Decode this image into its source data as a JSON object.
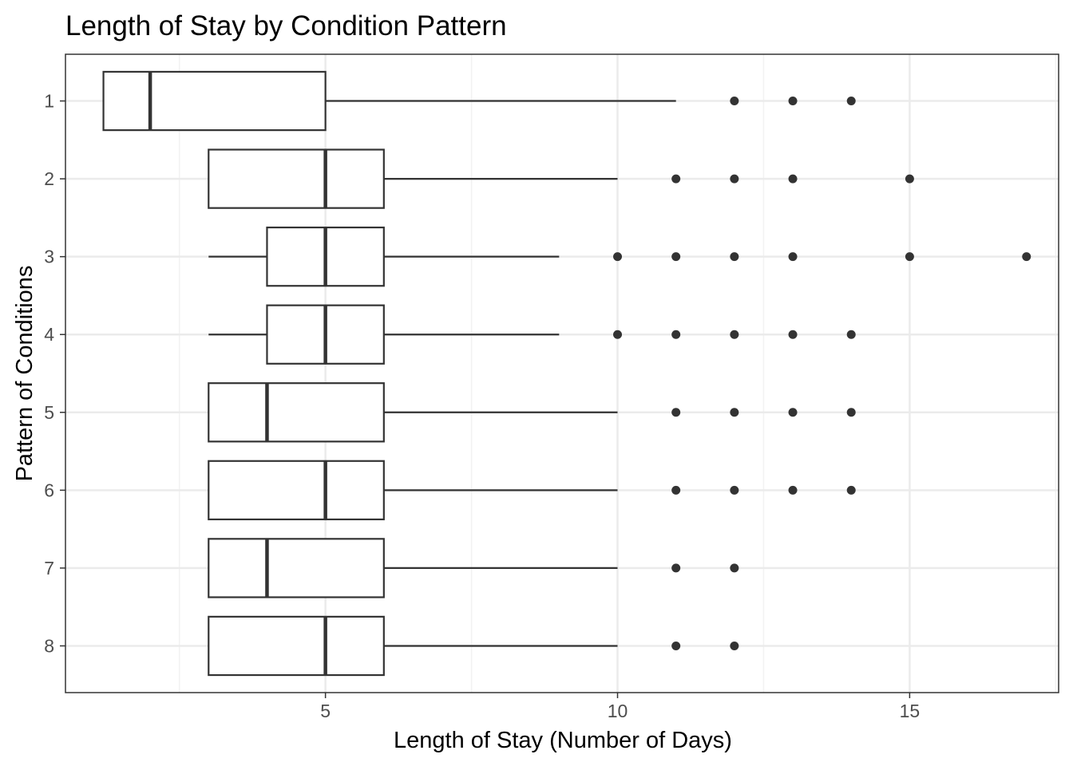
{
  "chart_data": {
    "type": "boxplot",
    "orientation": "horizontal",
    "title": "Length of Stay by Condition Pattern",
    "xlabel": "Length of Stay (Number of Days)",
    "ylabel": "Pattern of Conditions",
    "xlim": [
      0.55,
      17.55
    ],
    "x_ticks": [
      5,
      10,
      15
    ],
    "x_minor_ticks": [
      2.5,
      7.5,
      12.5,
      17.5
    ],
    "grid": true,
    "categories": [
      "1",
      "2",
      "3",
      "4",
      "5",
      "6",
      "7",
      "8"
    ],
    "series": [
      {
        "category": "1",
        "whisker_low": 1.2,
        "q1": 1.2,
        "median": 2.0,
        "q3": 5.0,
        "whisker_high": 11.0,
        "outliers": [
          12,
          13,
          14
        ]
      },
      {
        "category": "2",
        "whisker_low": 3.0,
        "q1": 3.0,
        "median": 5.0,
        "q3": 6.0,
        "whisker_high": 10.0,
        "outliers": [
          11,
          12,
          13,
          15
        ]
      },
      {
        "category": "3",
        "whisker_low": 3.0,
        "q1": 4.0,
        "median": 5.0,
        "q3": 6.0,
        "whisker_high": 9.0,
        "outliers": [
          10,
          11,
          12,
          13,
          15,
          17
        ]
      },
      {
        "category": "4",
        "whisker_low": 3.0,
        "q1": 4.0,
        "median": 5.0,
        "q3": 6.0,
        "whisker_high": 9.0,
        "outliers": [
          10,
          11,
          12,
          13,
          14
        ]
      },
      {
        "category": "5",
        "whisker_low": 3.0,
        "q1": 3.0,
        "median": 4.0,
        "q3": 6.0,
        "whisker_high": 10.0,
        "outliers": [
          11,
          12,
          13,
          14
        ]
      },
      {
        "category": "6",
        "whisker_low": 3.0,
        "q1": 3.0,
        "median": 5.0,
        "q3": 6.0,
        "whisker_high": 10.0,
        "outliers": [
          11,
          12,
          13,
          14
        ]
      },
      {
        "category": "7",
        "whisker_low": 3.0,
        "q1": 3.0,
        "median": 4.0,
        "q3": 6.0,
        "whisker_high": 10.0,
        "outliers": [
          11,
          12
        ]
      },
      {
        "category": "8",
        "whisker_low": 3.0,
        "q1": 3.0,
        "median": 5.0,
        "q3": 6.0,
        "whisker_high": 10.0,
        "outliers": [
          11,
          12
        ]
      }
    ],
    "colors": {
      "box_stroke": "#333333",
      "box_fill": "#ffffff",
      "outlier": "#333333",
      "grid_major": "#ebebeb",
      "grid_minor": "#f2f2f2",
      "panel_border": "#333333",
      "tick_label": "#4d4d4d"
    }
  }
}
